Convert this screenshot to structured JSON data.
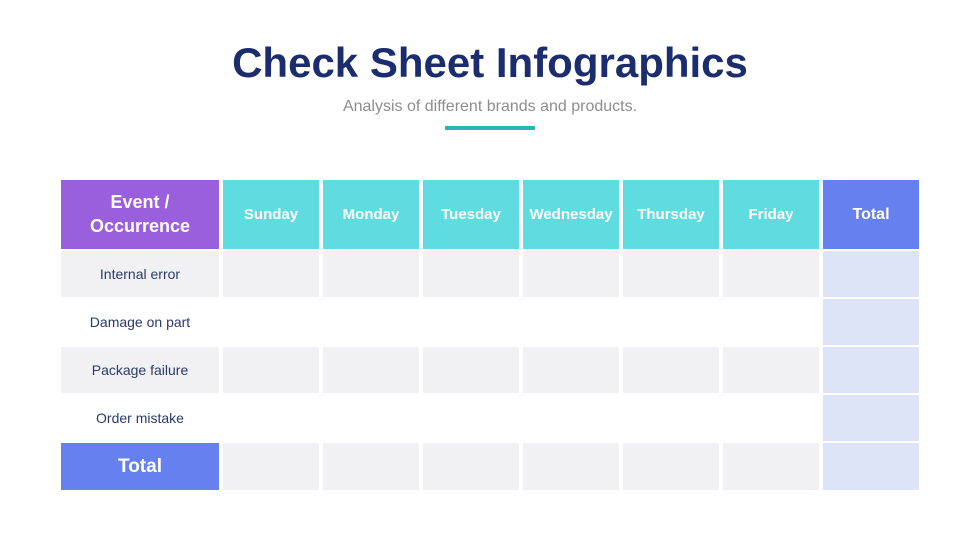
{
  "page": {
    "title": "Check Sheet Infographics",
    "subtitle": "Analysis of different brands and products."
  },
  "colors": {
    "title_navy": "#1b2d6f",
    "subtitle_gray": "#8d8d8d",
    "divider_teal": "#2ab4b6",
    "header_purple": "#9a5fdc",
    "header_teal": "#5fdcdf",
    "header_blue": "#6680f0",
    "total_column_lavender": "#dee4f8",
    "stripe_gray": "#f1f1f3",
    "label_navy": "#2b3a67",
    "header_text_white": "#ffffff"
  },
  "table": {
    "corner_header": "Event / Occurrence",
    "day_headers": [
      "Sunday",
      "Monday",
      "Tuesday",
      "Wednesday",
      "Thursday",
      "Friday"
    ],
    "total_header": "Total",
    "rows": [
      {
        "label": "Internal error",
        "values": [
          "",
          "",
          "",
          "",
          "",
          ""
        ],
        "total": ""
      },
      {
        "label": "Damage on part",
        "values": [
          "",
          "",
          "",
          "",
          "",
          ""
        ],
        "total": ""
      },
      {
        "label": "Package failure",
        "values": [
          "",
          "",
          "",
          "",
          "",
          ""
        ],
        "total": ""
      },
      {
        "label": "Order mistake",
        "values": [
          "",
          "",
          "",
          "",
          "",
          ""
        ],
        "total": ""
      }
    ],
    "total_row": {
      "label": "Total",
      "values": [
        "",
        "",
        "",
        "",
        "",
        ""
      ],
      "total": ""
    }
  },
  "chart_data": {
    "type": "table",
    "title": "Check Sheet Infographics",
    "subtitle": "Analysis of different brands and products.",
    "columns": [
      "Event / Occurrence",
      "Sunday",
      "Monday",
      "Tuesday",
      "Wednesday",
      "Thursday",
      "Friday",
      "Total"
    ],
    "rows": [
      [
        "Internal error",
        "",
        "",
        "",
        "",
        "",
        "",
        ""
      ],
      [
        "Damage on part",
        "",
        "",
        "",
        "",
        "",
        "",
        ""
      ],
      [
        "Package failure",
        "",
        "",
        "",
        "",
        "",
        "",
        ""
      ],
      [
        "Order mistake",
        "",
        "",
        "",
        "",
        "",
        "",
        ""
      ],
      [
        "Total",
        "",
        "",
        "",
        "",
        "",
        "",
        ""
      ]
    ],
    "notes": "Blank check sheet template; all value cells are empty."
  }
}
